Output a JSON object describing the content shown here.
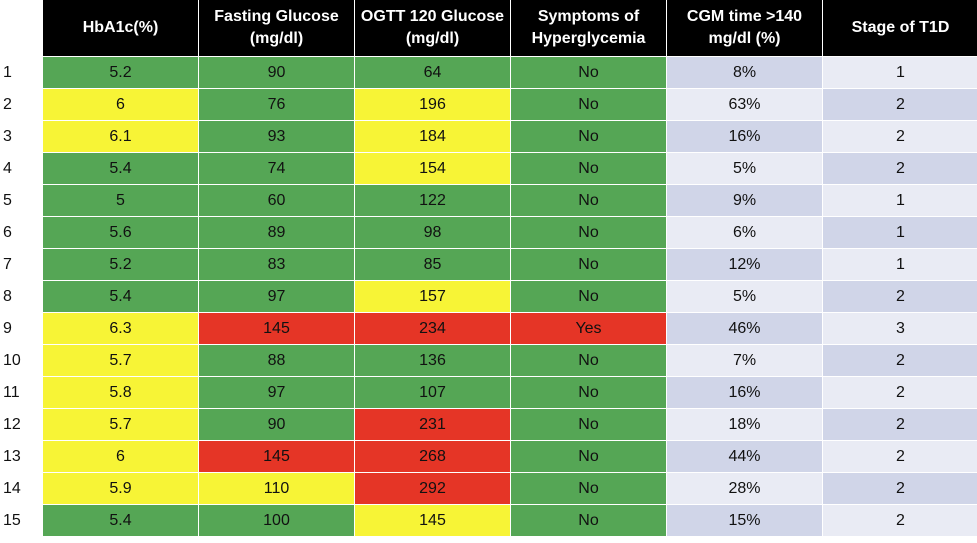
{
  "table": {
    "headers": [
      "HbA1c(%)",
      "Fasting Glucose (mg/dl)",
      "OGTT 120 Glucose (mg/dl)",
      "Symptoms of Hyperglycemia",
      "CGM time >140 mg/dl (%)",
      "Stage of T1D"
    ],
    "rows": [
      {
        "n": "1",
        "hba1c": "5.2",
        "fasting": "90",
        "ogtt": "64",
        "symptoms": "No",
        "cgm": "8%",
        "stage": "1"
      },
      {
        "n": "2",
        "hba1c": "6",
        "fasting": "76",
        "ogtt": "196",
        "symptoms": "No",
        "cgm": "63%",
        "stage": "2"
      },
      {
        "n": "3",
        "hba1c": "6.1",
        "fasting": "93",
        "ogtt": "184",
        "symptoms": "No",
        "cgm": "16%",
        "stage": "2"
      },
      {
        "n": "4",
        "hba1c": "5.4",
        "fasting": "74",
        "ogtt": "154",
        "symptoms": "No",
        "cgm": "5%",
        "stage": "2"
      },
      {
        "n": "5",
        "hba1c": "5",
        "fasting": "60",
        "ogtt": "122",
        "symptoms": "No",
        "cgm": "9%",
        "stage": "1"
      },
      {
        "n": "6",
        "hba1c": "5.6",
        "fasting": "89",
        "ogtt": "98",
        "symptoms": "No",
        "cgm": "6%",
        "stage": "1"
      },
      {
        "n": "7",
        "hba1c": "5.2",
        "fasting": "83",
        "ogtt": "85",
        "symptoms": "No",
        "cgm": "12%",
        "stage": "1"
      },
      {
        "n": "8",
        "hba1c": "5.4",
        "fasting": "97",
        "ogtt": "157",
        "symptoms": "No",
        "cgm": "5%",
        "stage": "2"
      },
      {
        "n": "9",
        "hba1c": "6.3",
        "fasting": "145",
        "ogtt": "234",
        "symptoms": "Yes",
        "cgm": "46%",
        "stage": "3"
      },
      {
        "n": "10",
        "hba1c": "5.7",
        "fasting": "88",
        "ogtt": "136",
        "symptoms": "No",
        "cgm": "7%",
        "stage": "2"
      },
      {
        "n": "11",
        "hba1c": "5.8",
        "fasting": "97",
        "ogtt": "107",
        "symptoms": "No",
        "cgm": "16%",
        "stage": "2"
      },
      {
        "n": "12",
        "hba1c": "5.7",
        "fasting": "90",
        "ogtt": "231",
        "symptoms": "No",
        "cgm": "18%",
        "stage": "2"
      },
      {
        "n": "13",
        "hba1c": "6",
        "fasting": "145",
        "ogtt": "268",
        "symptoms": "No",
        "cgm": "44%",
        "stage": "2"
      },
      {
        "n": "14",
        "hba1c": "5.9",
        "fasting": "110",
        "ogtt": "292",
        "symptoms": "No",
        "cgm": "28%",
        "stage": "2"
      },
      {
        "n": "15",
        "hba1c": "5.4",
        "fasting": "100",
        "ogtt": "145",
        "symptoms": "No",
        "cgm": "15%",
        "stage": "2"
      }
    ],
    "cell_status": [
      [
        "green",
        "green",
        "green",
        "green"
      ],
      [
        "yellow",
        "green",
        "yellow",
        "green"
      ],
      [
        "yellow",
        "green",
        "yellow",
        "green"
      ],
      [
        "green",
        "green",
        "yellow",
        "green"
      ],
      [
        "green",
        "green",
        "green",
        "green"
      ],
      [
        "green",
        "green",
        "green",
        "green"
      ],
      [
        "green",
        "green",
        "green",
        "green"
      ],
      [
        "green",
        "green",
        "yellow",
        "green"
      ],
      [
        "yellow",
        "red",
        "red",
        "red"
      ],
      [
        "yellow",
        "green",
        "green",
        "green"
      ],
      [
        "yellow",
        "green",
        "green",
        "green"
      ],
      [
        "yellow",
        "green",
        "red",
        "green"
      ],
      [
        "yellow",
        "red",
        "red",
        "green"
      ],
      [
        "yellow",
        "yellow",
        "red",
        "green"
      ],
      [
        "green",
        "green",
        "yellow",
        "green"
      ]
    ],
    "colors": {
      "green": "#55a655",
      "yellow": "#f7f436",
      "red": "#e53526",
      "header_bg": "#000000",
      "header_text": "#ffffff",
      "cgm_bg": "#e9ebf4",
      "stage_bg": "#d0d5e8"
    }
  }
}
